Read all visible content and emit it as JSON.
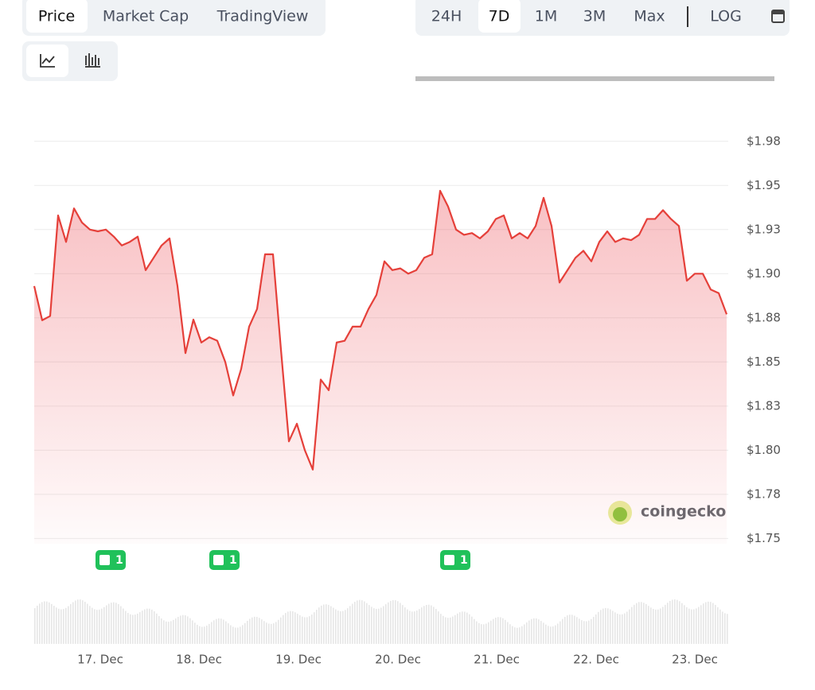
{
  "tabs": [
    "Price",
    "Market Cap",
    "TradingView"
  ],
  "ranges": [
    "24H",
    "7D",
    "1M",
    "3M",
    "Max"
  ],
  "log_button": "LOG",
  "watermark": "coingecko",
  "chart_data": {
    "type": "line",
    "color": "#e5403a",
    "values": [
      1.893,
      1.8736,
      1.876,
      1.933,
      1.918,
      1.937,
      1.929,
      1.925,
      1.924,
      1.925,
      1.921,
      1.916,
      1.918,
      1.921,
      1.902,
      1.909,
      1.916,
      1.92,
      1.893,
      1.855,
      1.874,
      1.861,
      1.864,
      1.862,
      1.85,
      1.831,
      1.846,
      1.87,
      1.88,
      1.911,
      1.911,
      1.857,
      1.805,
      1.815,
      1.8,
      1.789,
      1.84,
      1.834,
      1.861,
      1.862,
      1.87,
      1.87,
      1.88,
      1.888,
      1.907,
      1.902,
      1.903,
      1.9,
      1.902,
      1.909,
      1.911,
      1.947,
      1.938,
      1.925,
      1.922,
      1.923,
      1.92,
      1.924,
      1.931,
      1.933,
      1.92,
      1.923,
      1.92,
      1.927,
      1.943,
      1.927,
      1.895,
      1.902,
      1.909,
      1.913,
      1.907,
      1.918,
      1.924,
      1.918,
      1.92,
      1.919,
      1.922,
      1.931,
      1.931,
      1.936,
      1.931,
      1.927,
      1.896,
      1.9,
      1.9,
      1.891,
      1.889,
      1.877
    ],
    "xlim": [
      0,
      87.2
    ],
    "xticks": [
      {
        "value": 8.3,
        "label": "17. Dec"
      },
      {
        "value": 20.7,
        "label": "18. Dec"
      },
      {
        "value": 33.2,
        "label": "19. Dec"
      },
      {
        "value": 45.7,
        "label": "20. Dec"
      },
      {
        "value": 58.1,
        "label": "21. Dec"
      },
      {
        "value": 70.6,
        "label": "22. Dec"
      },
      {
        "value": 83,
        "label": "23. Dec"
      }
    ],
    "ylim": [
      1.747,
      1.983
    ],
    "yticks": [
      {
        "value": 1.975,
        "label": "$1.98"
      },
      {
        "value": 1.95,
        "label": "$1.95"
      },
      {
        "value": 1.925,
        "label": "$1.93"
      },
      {
        "value": 1.9,
        "label": "$1.90"
      },
      {
        "value": 1.875,
        "label": "$1.88"
      },
      {
        "value": 1.85,
        "label": "$1.85"
      },
      {
        "value": 1.825,
        "label": "$1.83"
      },
      {
        "value": 1.8,
        "label": "$1.80"
      },
      {
        "value": 1.775,
        "label": "$1.78"
      },
      {
        "value": 1.75,
        "label": "$1.75"
      }
    ],
    "grid": true,
    "annotations": [
      "1",
      "1",
      "1"
    ]
  }
}
